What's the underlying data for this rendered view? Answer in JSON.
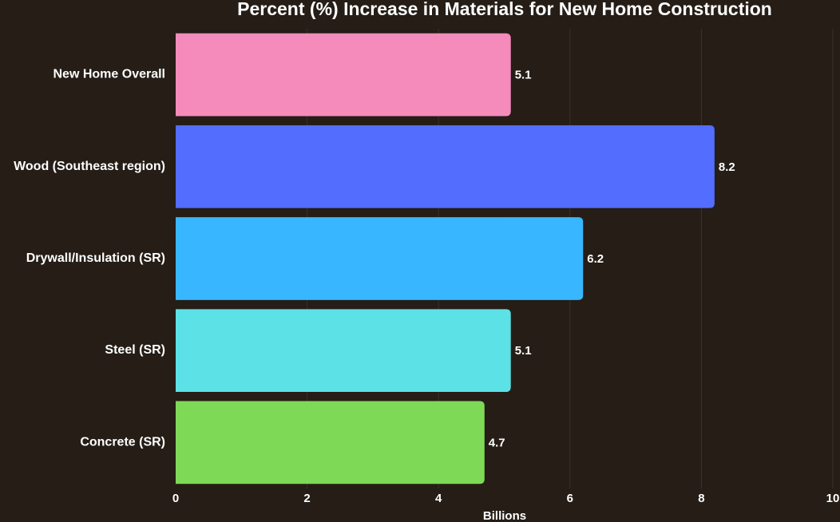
{
  "chart_data": {
    "type": "bar",
    "orientation": "horizontal",
    "title": "Percent (%) Increase in Materials for New Home Construction",
    "xlabel": "Billions",
    "ylabel": "",
    "xlim": [
      0,
      10
    ],
    "xticks": [
      "0",
      "2",
      "4",
      "6",
      "8",
      "10"
    ],
    "grid": true,
    "categories": [
      "New Home Overall",
      "Wood (Southeast region)",
      "Drywall/Insulation (SR)",
      "Steel (SR)",
      "Concrete (SR)"
    ],
    "values": [
      5.1,
      8.2,
      6.2,
      5.1,
      4.7
    ],
    "value_labels": [
      "5.1",
      "8.2",
      "6.2",
      "5.1",
      "4.7"
    ],
    "colors": [
      "#f48bbb",
      "#536dfe",
      "#38b6ff",
      "#5ce1e6",
      "#7ed957"
    ]
  }
}
